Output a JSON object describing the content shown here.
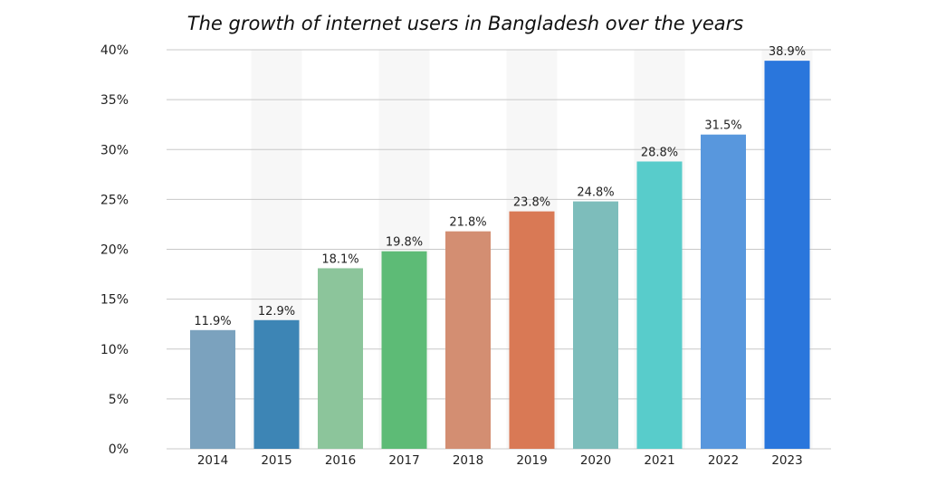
{
  "chart_data": {
    "type": "bar",
    "title": "The growth of internet users in Bangladesh over the years",
    "xlabel": "",
    "ylabel": "",
    "categories": [
      "2014",
      "2015",
      "2016",
      "2017",
      "2018",
      "2019",
      "2020",
      "2021",
      "2022",
      "2023"
    ],
    "values": [
      11.9,
      12.9,
      18.1,
      19.8,
      21.8,
      23.8,
      24.8,
      28.8,
      31.5,
      38.9
    ],
    "data_labels": [
      "11.9%",
      "12.9%",
      "18.1%",
      "19.8%",
      "21.8%",
      "23.8%",
      "24.8%",
      "28.8%",
      "31.5%",
      "38.9%"
    ],
    "colors": [
      "#7ba2be",
      "#3d85b5",
      "#8cc59b",
      "#5dbb76",
      "#d38e72",
      "#d97955",
      "#7dbdbb",
      "#58cccb",
      "#5897dd",
      "#2a76dc"
    ],
    "ylim": [
      0,
      40
    ],
    "yticks": [
      0,
      5,
      10,
      15,
      20,
      25,
      30,
      35,
      40
    ],
    "ytick_labels": [
      "0%",
      "5%",
      "10%",
      "15%",
      "20%",
      "25%",
      "30%",
      "35%",
      "40%"
    ],
    "grid": true,
    "grid_color": "#c8c8c8",
    "band_color": "#f7f7f7",
    "legend": "none"
  }
}
